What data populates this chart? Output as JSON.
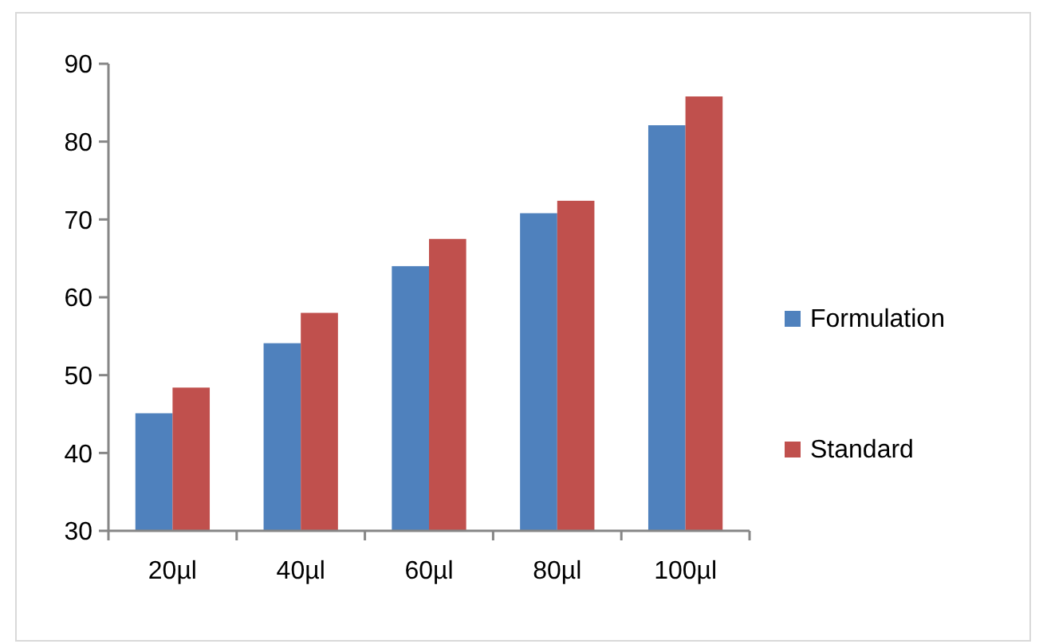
{
  "chart_data": {
    "type": "bar",
    "categories": [
      "20µl",
      "40µl",
      "60µl",
      "80µl",
      "100µl"
    ],
    "series": [
      {
        "name": "Formulation",
        "color": "#4f81bd",
        "values": [
          45.1,
          54.1,
          64.0,
          70.8,
          82.1
        ]
      },
      {
        "name": "Standard",
        "color": "#c0504d",
        "values": [
          48.4,
          58.0,
          67.5,
          72.4,
          85.8
        ]
      }
    ],
    "ylim": [
      30,
      90
    ],
    "yticks": [
      30,
      40,
      50,
      60,
      70,
      80,
      90
    ],
    "grid": false,
    "legend": "right"
  }
}
